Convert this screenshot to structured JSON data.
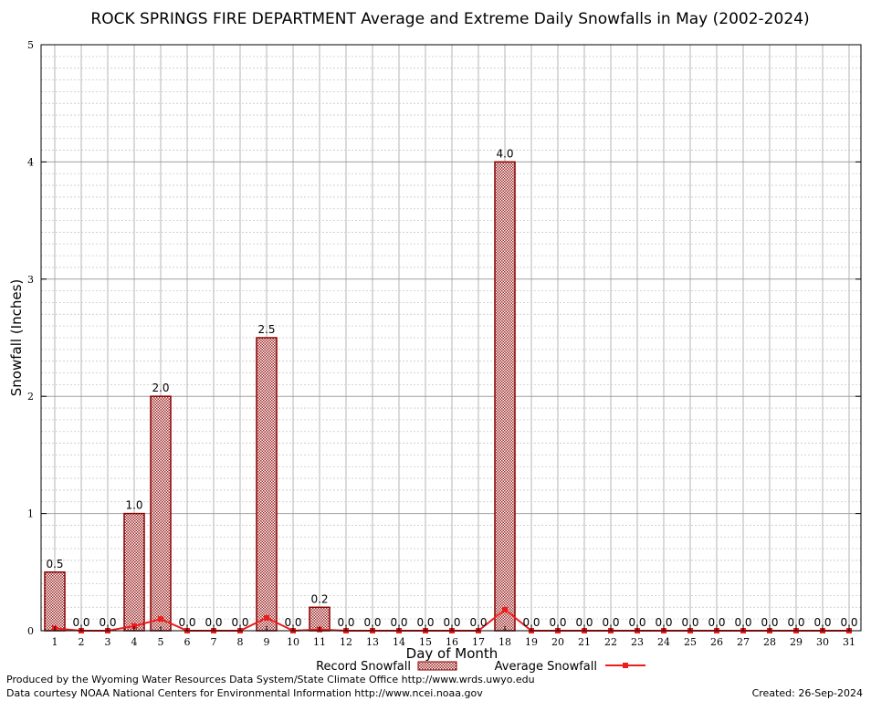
{
  "chart_data": {
    "type": "bar",
    "title": "ROCK SPRINGS FIRE DEPARTMENT Average and Extreme Daily Snowfalls in May (2002-2024)",
    "xlabel": "Day of Month",
    "ylabel": "Snowfall (Inches)",
    "ylim": [
      0,
      5
    ],
    "yticks": [
      "0",
      "1",
      "2",
      "3",
      "4",
      "5"
    ],
    "categories": [
      "1",
      "2",
      "3",
      "4",
      "5",
      "6",
      "7",
      "8",
      "9",
      "10",
      "11",
      "12",
      "13",
      "14",
      "15",
      "16",
      "17",
      "18",
      "19",
      "20",
      "21",
      "22",
      "23",
      "24",
      "25",
      "26",
      "27",
      "28",
      "29",
      "30",
      "31"
    ],
    "series": [
      {
        "name": "Record Snowfall",
        "type": "bar",
        "color": "#8b0000",
        "values": [
          0.5,
          0,
          0,
          1.0,
          2.0,
          0,
          0,
          0,
          2.5,
          0,
          0.2,
          0,
          0,
          0,
          0,
          0,
          0,
          4.0,
          0,
          0,
          0,
          0,
          0,
          0,
          0,
          0,
          0,
          0,
          0,
          0,
          0
        ],
        "labels": [
          "0.5",
          "0.0",
          "0.0",
          "1.0",
          "2.0",
          "0.0",
          "0.0",
          "0.0",
          "2.5",
          "0.0",
          "0.2",
          "0.0",
          "0.0",
          "0.0",
          "0.0",
          "0.0",
          "0.0",
          "4.0",
          "0.0",
          "0.0",
          "0.0",
          "0.0",
          "0.0",
          "0.0",
          "0.0",
          "0.0",
          "0.0",
          "0.0",
          "0.0",
          "0.0",
          "0.0"
        ]
      },
      {
        "name": "Average Snowfall",
        "type": "line",
        "color": "#ee1c1c",
        "values": [
          0.02,
          0,
          0,
          0.04,
          0.1,
          0,
          0,
          0,
          0.11,
          0,
          0.01,
          0,
          0,
          0,
          0,
          0,
          0,
          0.18,
          0,
          0,
          0,
          0,
          0,
          0,
          0,
          0,
          0,
          0,
          0,
          0,
          0
        ]
      }
    ],
    "grid": true,
    "legend": "bottom-center"
  },
  "footer": {
    "produced_by": "Produced by the Wyoming Water Resources Data System/State Climate Office http://www.wrds.uwyo.edu",
    "courtesy": "Data courtesy NOAA National Centers for Environmental Information http://www.ncei.noaa.gov",
    "created": "Created: 26-Sep-2024"
  }
}
